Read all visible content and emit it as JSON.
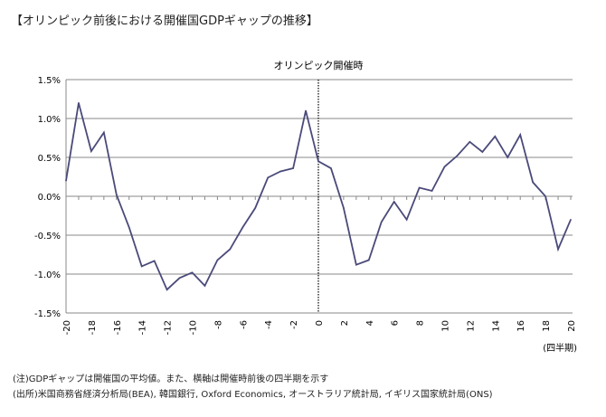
{
  "header": {
    "title": "【オリンピック前後における開催国GDPギャップの推移】"
  },
  "notes": [
    "(注)GDPギャップは開催国の平均値。また、横軸は開催時前後の四半期を示す",
    "(出所)米国商務省経済分析局(BEA), 韓国銀行, Oxford Economics, オーストラリア統計局, イギリス国家統計局(ONS)"
  ],
  "chart_data": {
    "type": "line",
    "title": "",
    "annotation": "オリンピック開催時",
    "xlabel": "(四半期)",
    "ylabel": "",
    "xlim": [
      -20,
      20
    ],
    "ylim": [
      -1.5,
      1.5
    ],
    "grid": true,
    "color": "#4a4a7a",
    "x_ticks": [
      "-20",
      "-18",
      "-16",
      "-14",
      "-12",
      "-10",
      "-8",
      "-6",
      "-4",
      "-2",
      "0",
      "2",
      "4",
      "6",
      "8",
      "10",
      "12",
      "14",
      "16",
      "18",
      "20"
    ],
    "y_ticks": [
      "1.5%",
      "1.0%",
      "0.5%",
      "0.0%",
      "-0.5%",
      "-1.0%",
      "-1.5%"
    ],
    "x": [
      -20,
      -19,
      -18,
      -17,
      -16,
      -15,
      -14,
      -13,
      -12,
      -11,
      -10,
      -9,
      -8,
      -7,
      -6,
      -5,
      -4,
      -3,
      -2,
      -1,
      0,
      1,
      2,
      3,
      4,
      5,
      6,
      7,
      8,
      9,
      10,
      11,
      12,
      13,
      14,
      15,
      16,
      17,
      18,
      19,
      20
    ],
    "values": [
      0.2,
      1.2,
      0.58,
      0.82,
      0.02,
      -0.4,
      -0.9,
      -0.83,
      -1.2,
      -1.05,
      -0.98,
      -1.15,
      -0.82,
      -0.68,
      -0.4,
      -0.15,
      0.24,
      0.32,
      0.36,
      1.1,
      0.45,
      0.36,
      -0.15,
      -0.88,
      -0.82,
      -0.33,
      -0.07,
      -0.3,
      0.11,
      0.07,
      0.38,
      0.52,
      0.7,
      0.57,
      0.77,
      0.5,
      0.79,
      0.18,
      0.0,
      -0.68,
      -0.3
    ]
  }
}
